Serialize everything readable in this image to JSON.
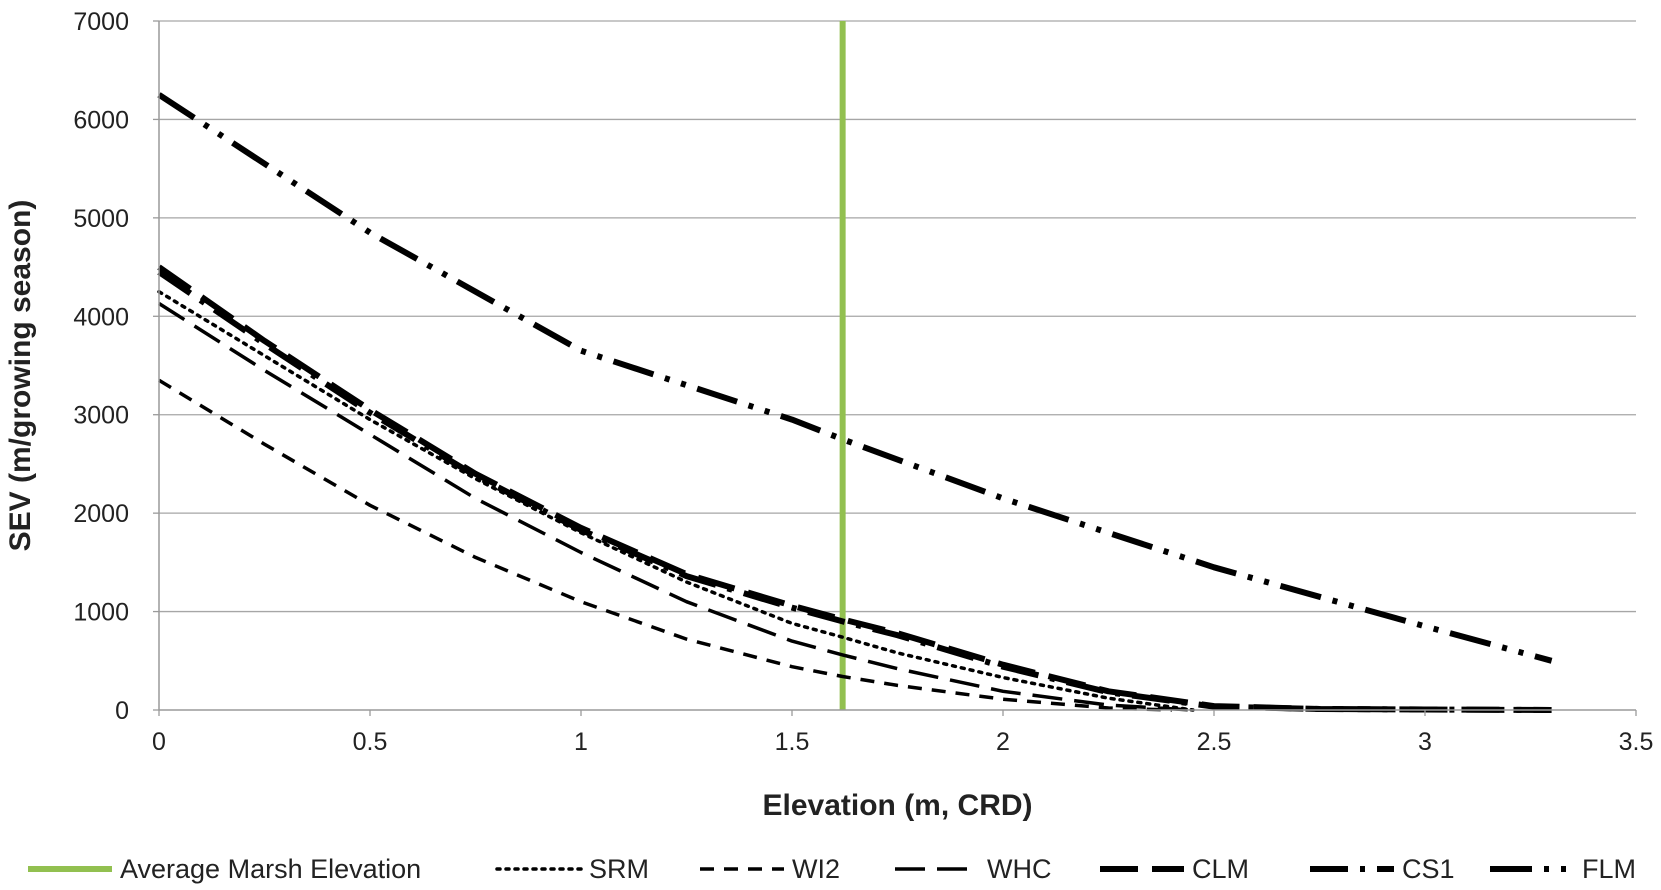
{
  "chart_data": {
    "type": "line",
    "title": "",
    "xlabel": "Elevation (m, CRD)",
    "ylabel": "SEV (m/growing season)",
    "xlim": [
      0,
      3.5
    ],
    "ylim": [
      0,
      7000
    ],
    "xticks": [
      0,
      0.5,
      1,
      1.5,
      2,
      2.5,
      3,
      3.5
    ],
    "xtick_labels": [
      "0",
      "0.5",
      "1",
      "1.5",
      "2",
      "2.5",
      "3",
      "3.5"
    ],
    "yticks": [
      0,
      1000,
      2000,
      3000,
      4000,
      5000,
      6000,
      7000
    ],
    "ytick_labels": [
      "0",
      "1000",
      "2000",
      "3000",
      "4000",
      "5000",
      "6000",
      "7000"
    ],
    "grid": "horizontal",
    "legend_position": "bottom",
    "reference_line": {
      "name": "Average Marsh Elevation",
      "x": 1.62,
      "color": "#92c050"
    },
    "series": [
      {
        "name": "SRM",
        "dash": "dotted",
        "x": [
          0,
          0.25,
          0.5,
          0.75,
          1.0,
          1.25,
          1.5,
          1.62,
          1.75,
          2.0,
          2.25,
          2.45
        ],
        "y": [
          4250,
          3600,
          2950,
          2350,
          1800,
          1300,
          880,
          740,
          580,
          330,
          120,
          0
        ]
      },
      {
        "name": "WI2",
        "dash": "short-dash",
        "x": [
          0,
          0.25,
          0.5,
          0.75,
          1.0,
          1.25,
          1.5,
          1.62,
          1.75,
          2.0,
          2.25,
          2.4
        ],
        "y": [
          3350,
          2700,
          2080,
          1550,
          1100,
          720,
          440,
          340,
          250,
          110,
          20,
          0
        ]
      },
      {
        "name": "WHC",
        "dash": "long-dash",
        "x": [
          0,
          0.25,
          0.5,
          0.75,
          1.0,
          1.25,
          1.5,
          1.62,
          1.75,
          2.0,
          2.25,
          2.45
        ],
        "y": [
          4130,
          3450,
          2800,
          2150,
          1600,
          1100,
          700,
          560,
          420,
          190,
          50,
          0
        ]
      },
      {
        "name": "CLM",
        "dash": "heavy-dash",
        "x": [
          0,
          0.25,
          0.5,
          0.75,
          1.0,
          1.25,
          1.5,
          1.62,
          1.75,
          2.0,
          2.25,
          2.5,
          2.75,
          3.0,
          3.3
        ],
        "y": [
          4500,
          3750,
          3050,
          2400,
          1850,
          1380,
          1060,
          920,
          780,
          460,
          190,
          40,
          10,
          5,
          0
        ]
      },
      {
        "name": "CS1",
        "dash": "dash-dot",
        "x": [
          0,
          0.25,
          0.5,
          0.75,
          1.0,
          1.25,
          1.5,
          1.62,
          1.75,
          2.0,
          2.25,
          2.5,
          2.75,
          3.0,
          3.3
        ],
        "y": [
          4450,
          3720,
          3020,
          2380,
          1830,
          1360,
          1040,
          900,
          760,
          440,
          180,
          35,
          10,
          5,
          0
        ]
      },
      {
        "name": "FLM",
        "dash": "dash-dot-dot",
        "x": [
          0,
          0.5,
          1.0,
          1.5,
          1.62,
          2.0,
          2.5,
          3.0,
          3.3
        ],
        "y": [
          6250,
          4850,
          3650,
          2950,
          2750,
          2150,
          1450,
          850,
          500
        ]
      }
    ]
  }
}
